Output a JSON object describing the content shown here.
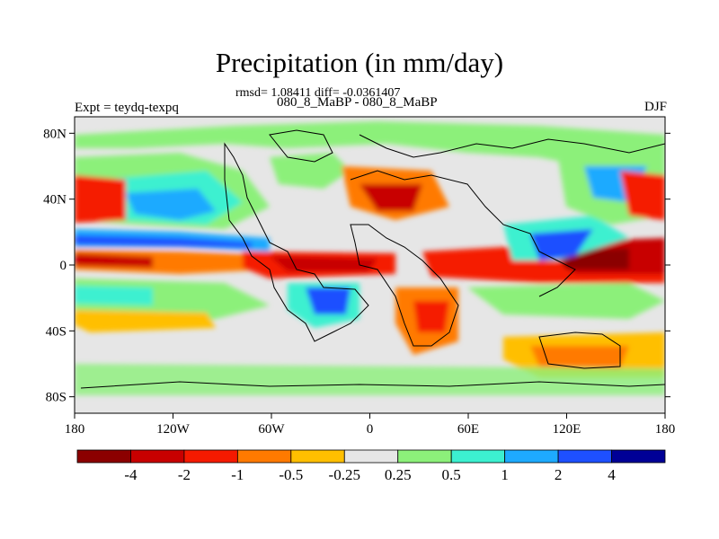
{
  "title": "Precipitation (in mm/day)",
  "stats_line": "rmsd= 1.08411 diff= -0.0361407",
  "subtitle": "080_8_MaBP - 080_8_MaBP",
  "left_label": "Expt = teydq-texpq",
  "right_label": "DJF",
  "y_ticks": [
    "80N",
    "40N",
    "0",
    "40S",
    "80S"
  ],
  "x_ticks": [
    "180",
    "120W",
    "60W",
    "0",
    "60E",
    "120E",
    "180"
  ],
  "colorbar": {
    "colors": [
      "#8b0000",
      "#c80000",
      "#f51a00",
      "#ff7a00",
      "#ffbf00",
      "#e6e6e6",
      "#8cf07a",
      "#3cf0d0",
      "#1eaaff",
      "#1e50ff",
      "#000096"
    ],
    "labels": [
      "-4",
      "-2",
      "-1",
      "-0.5",
      "-0.25",
      "0.25",
      "0.5",
      "1",
      "2",
      "4"
    ]
  },
  "colors": {
    "background_field": "#e6e6e6",
    "coastline": "#000000"
  }
}
